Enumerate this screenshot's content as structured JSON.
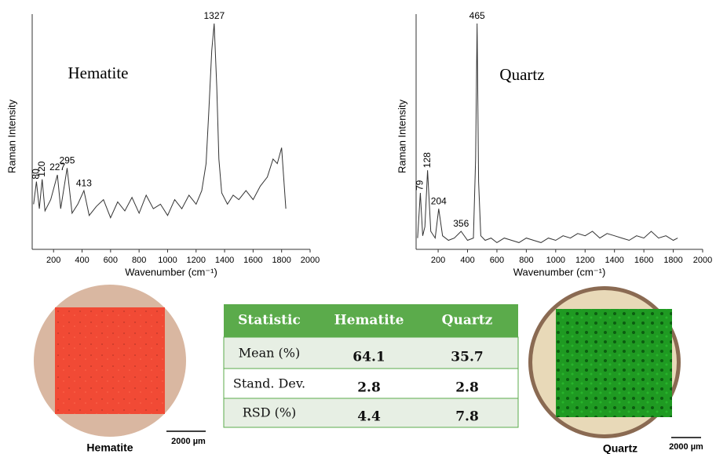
{
  "chart_data": [
    {
      "type": "line",
      "title": "Hematite",
      "xlabel": "Wavenumber (cm⁻¹)",
      "ylabel": "Raman Intensity",
      "color": "#333333",
      "xlim": [
        50,
        2000
      ],
      "ylim": [
        0,
        100
      ],
      "xticks": [
        200,
        400,
        600,
        800,
        1000,
        1200,
        1400,
        1600,
        1800,
        2000
      ],
      "x": [
        60,
        80,
        100,
        120,
        140,
        180,
        227,
        250,
        295,
        330,
        370,
        413,
        450,
        500,
        550,
        600,
        650,
        700,
        750,
        800,
        850,
        900,
        950,
        1000,
        1050,
        1100,
        1150,
        1200,
        1240,
        1270,
        1290,
        1310,
        1327,
        1345,
        1360,
        1380,
        1420,
        1460,
        1500,
        1550,
        1600,
        1650,
        1700,
        1740,
        1770,
        1800,
        1830
      ],
      "values": [
        20,
        30,
        18,
        31,
        17,
        22,
        33,
        18,
        36,
        16,
        20,
        26,
        15,
        19,
        22,
        14,
        21,
        17,
        23,
        16,
        24,
        18,
        20,
        15,
        22,
        18,
        24,
        20,
        26,
        38,
        62,
        88,
        100,
        72,
        40,
        25,
        20,
        24,
        22,
        26,
        22,
        28,
        32,
        40,
        38,
        45,
        18
      ],
      "annotations": [
        {
          "x": 80,
          "y": 30
        },
        {
          "x": 120,
          "y": 31
        },
        {
          "x": 227,
          "y": 33
        },
        {
          "x": 295,
          "y": 36
        },
        {
          "x": 413,
          "y": 26
        },
        {
          "x": 1327,
          "y": 100
        }
      ]
    },
    {
      "type": "line",
      "title": "Quartz",
      "xlabel": "Wavenumber (cm⁻¹)",
      "ylabel": "Raman Intensity",
      "color": "#333333",
      "xlim": [
        50,
        2000
      ],
      "ylim": [
        0,
        100
      ],
      "xticks": [
        200,
        400,
        600,
        800,
        1000,
        1200,
        1400,
        1600,
        1800,
        2000
      ],
      "x": [
        60,
        79,
        95,
        110,
        128,
        150,
        180,
        204,
        230,
        270,
        310,
        356,
        400,
        440,
        455,
        465,
        475,
        490,
        520,
        560,
        600,
        650,
        700,
        750,
        800,
        850,
        900,
        950,
        1000,
        1050,
        1100,
        1150,
        1200,
        1250,
        1300,
        1350,
        1400,
        1450,
        1500,
        1550,
        1600,
        1650,
        1700,
        1750,
        1800,
        1830
      ],
      "values": [
        5,
        25,
        6,
        10,
        35,
        8,
        5,
        18,
        6,
        4,
        5,
        8,
        4,
        5,
        40,
        100,
        30,
        6,
        4,
        5,
        3,
        5,
        4,
        3,
        5,
        4,
        3,
        5,
        4,
        6,
        5,
        7,
        6,
        8,
        5,
        7,
        6,
        5,
        4,
        6,
        5,
        8,
        5,
        6,
        4,
        5
      ],
      "annotations": [
        {
          "x": 79,
          "y": 25
        },
        {
          "x": 128,
          "y": 35
        },
        {
          "x": 204,
          "y": 18
        },
        {
          "x": 356,
          "y": 8
        },
        {
          "x": 465,
          "y": 100
        }
      ]
    }
  ],
  "table": {
    "header": [
      "Statistic",
      "Hematite",
      "Quartz"
    ],
    "rows": [
      [
        "Mean (%)",
        64.1,
        35.7
      ],
      [
        "Stand. Dev.",
        2.8,
        2.8
      ],
      [
        "RSD (%)",
        4.4,
        7.8
      ]
    ]
  },
  "images": [
    {
      "caption": "Hematite",
      "scale_bar": "2000 µm"
    },
    {
      "caption": "Quartz",
      "scale_bar": "2000 µm"
    }
  ]
}
